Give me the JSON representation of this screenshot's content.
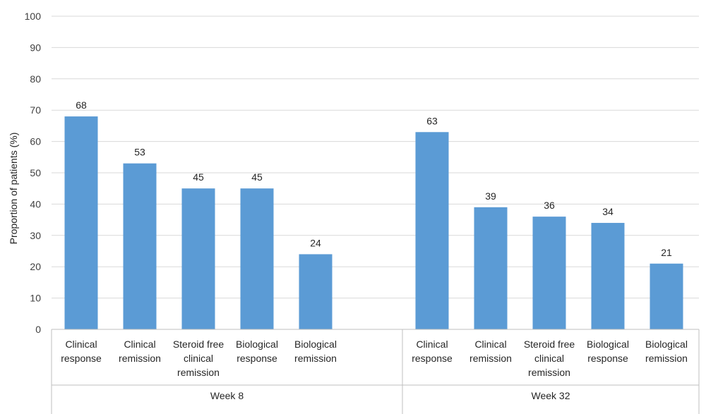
{
  "chart_data": {
    "type": "bar",
    "ylabel": "Proportion of patients (%)",
    "ylim": [
      0,
      100
    ],
    "yticks": [
      0,
      10,
      20,
      30,
      40,
      50,
      60,
      70,
      80,
      90,
      100
    ],
    "grid": true,
    "bar_color": "#5b9bd5",
    "groups": [
      {
        "name": "Week 8",
        "categories": [
          [
            "Clinical",
            "response"
          ],
          [
            "Clinical",
            "remission"
          ],
          [
            "Steroid free",
            "clinical",
            "remission"
          ],
          [
            "Biological",
            "response"
          ],
          [
            "Biological",
            "remission"
          ]
        ],
        "values": [
          68,
          53,
          45,
          45,
          24
        ]
      },
      {
        "name": "Week 32",
        "categories": [
          [
            "Clinical",
            "response"
          ],
          [
            "Clinical",
            "remission"
          ],
          [
            "Steroid free",
            "clinical",
            "remission"
          ],
          [
            "Biological",
            "response"
          ],
          [
            "Biological",
            "remission"
          ]
        ],
        "values": [
          63,
          39,
          36,
          34,
          21
        ]
      }
    ]
  }
}
